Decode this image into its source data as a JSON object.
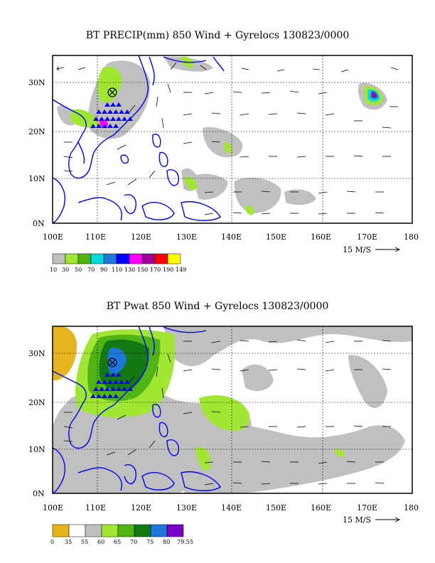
{
  "panels": [
    {
      "title": "BT PRECIP(mm) 850 Wind + Gyrelocs 130823/0000",
      "lat_labels": [
        "30N",
        "20N",
        "10N",
        "0N"
      ],
      "lon_labels": [
        "100E",
        "110E",
        "120E",
        "130E",
        "140E",
        "150E",
        "160E",
        "170E",
        "180"
      ],
      "scale_label": "15 M/S",
      "legend_labels": [
        "10",
        "30",
        "50",
        "70",
        "90",
        "110",
        "130",
        "150",
        "170",
        "190",
        "149"
      ],
      "legend_colors": [
        "#c0c0c0",
        "#a0e632",
        "#50b414",
        "#00dcdc",
        "#1e78dc",
        "#0000ff",
        "#ff00ff",
        "#a00096",
        "#ff0000",
        "#ffff00"
      ]
    },
    {
      "title": "BT Pwat 850 Wind + Gyrelocs 130823/0000",
      "lat_labels": [
        "30N",
        "20N",
        "10N",
        "0N"
      ],
      "lon_labels": [
        "100E",
        "110E",
        "120E",
        "130E",
        "140E",
        "150E",
        "160E",
        "170E",
        "180"
      ],
      "scale_label": "15 M/S",
      "legend_labels": [
        "0",
        "35",
        "55",
        "60",
        "65",
        "70",
        "75",
        "80",
        "79.55"
      ],
      "legend_colors": [
        "#e6b41e",
        "#ffffff",
        "#c0c0c0",
        "#a0e632",
        "#50b414",
        "#147814",
        "#1e78dc",
        "#7800c8"
      ]
    }
  ]
}
